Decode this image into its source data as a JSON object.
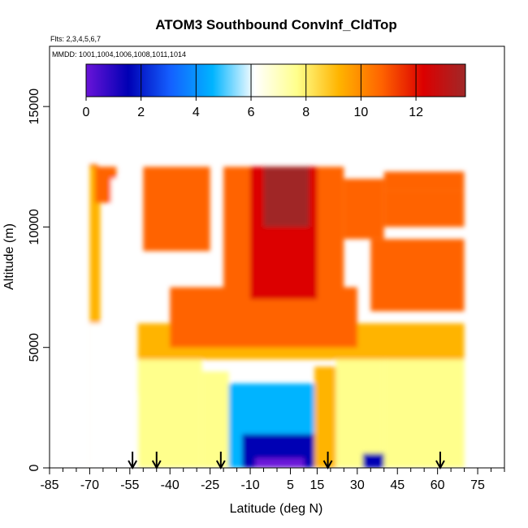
{
  "chart_data": {
    "type": "heatmap",
    "title": "ATOM3 Southbound ConvInf_CldTop",
    "annotations": [
      "Flts: 2,3,4,5,6,7",
      "MMDD: 1001,1004,1006,1008,1011,1014"
    ],
    "xlabel": "Latitude (deg N)",
    "ylabel": "Altitude (m)",
    "xlim": [
      -85,
      85
    ],
    "ylim": [
      0,
      17500
    ],
    "x_ticks": [
      -85,
      -70,
      -55,
      -40,
      -25,
      -10,
      5,
      15,
      30,
      45,
      60,
      75
    ],
    "x_tick_labels": [
      "-85",
      "-70",
      "-55",
      "-40",
      "-25",
      "-10",
      "5",
      "15",
      "30",
      "45",
      "60",
      "75"
    ],
    "y_ticks": [
      0,
      5000,
      10000,
      15000
    ],
    "y_tick_labels": [
      "0",
      "5000",
      "10000",
      "15000"
    ],
    "colorbar": {
      "min": 0,
      "max": 13.8,
      "ticks": [
        0,
        2,
        4,
        6,
        8,
        10,
        12
      ],
      "tick_labels": [
        "0",
        "2",
        "4",
        "6",
        "8",
        "10",
        "12"
      ],
      "colors": [
        "#6a14d8",
        "#0000b4",
        "#1460ff",
        "#00b4ff",
        "#ffffff",
        "#ffff8c",
        "#ffb400",
        "#ff6400",
        "#dc0000",
        "#a02828"
      ]
    },
    "flight_markers_latitude": [
      -54,
      -45,
      -21,
      19,
      61
    ],
    "regions": [
      {
        "lat": [
          -70,
          -67
        ],
        "alt": [
          12400,
          12600
        ],
        "value": 10.5
      },
      {
        "lat": [
          -70,
          -66
        ],
        "alt": [
          0,
          12500
        ],
        "value": 8.5
      },
      {
        "lat": [
          -68,
          -60
        ],
        "alt": [
          11000,
          12500
        ],
        "value": 10.5
      },
      {
        "lat": [
          -62,
          -58
        ],
        "alt": [
          10500,
          12000
        ],
        "value": 5.5
      },
      {
        "lat": [
          -70,
          -60
        ],
        "alt": [
          0,
          6000
        ],
        "value": 6.8
      },
      {
        "lat": [
          -60,
          -52
        ],
        "alt": [
          0,
          3000
        ],
        "value": 6.5
      },
      {
        "lat": [
          -52,
          -28
        ],
        "alt": [
          0,
          5000
        ],
        "value": 7.3
      },
      {
        "lat": [
          -28,
          -18
        ],
        "alt": [
          0,
          4000
        ],
        "value": 7.0
      },
      {
        "lat": [
          -18,
          14
        ],
        "alt": [
          0,
          3500
        ],
        "value": 4.0
      },
      {
        "lat": [
          -13,
          14
        ],
        "alt": [
          0,
          1400
        ],
        "value": 2.2
      },
      {
        "lat": [
          -8,
          10
        ],
        "alt": [
          0,
          400
        ],
        "value": 0.4
      },
      {
        "lat": [
          14,
          22
        ],
        "alt": [
          0,
          4200
        ],
        "value": 8.6
      },
      {
        "lat": [
          22,
          40
        ],
        "alt": [
          0,
          4800
        ],
        "value": 7.3
      },
      {
        "lat": [
          32,
          42
        ],
        "alt": [
          0,
          600
        ],
        "value": 1.5
      },
      {
        "lat": [
          40,
          70
        ],
        "alt": [
          0,
          4500
        ],
        "value": 7.6
      },
      {
        "lat": [
          -52,
          70
        ],
        "alt": [
          4500,
          6000
        ],
        "value": 9.2
      },
      {
        "lat": [
          -40,
          30
        ],
        "alt": [
          5000,
          7500
        ],
        "value": 10.0
      },
      {
        "lat": [
          -20,
          25
        ],
        "alt": [
          5500,
          12500
        ],
        "value": 11.5
      },
      {
        "lat": [
          -10,
          15
        ],
        "alt": [
          7000,
          12500
        ],
        "value": 12.7
      },
      {
        "lat": [
          -5,
          12
        ],
        "alt": [
          10000,
          12500
        ],
        "value": 13.2
      },
      {
        "lat": [
          25,
          40
        ],
        "alt": [
          9500,
          12000
        ],
        "value": 11.0
      },
      {
        "lat": [
          40,
          70
        ],
        "alt": [
          10000,
          11500
        ],
        "value": 10.0
      },
      {
        "lat": [
          40,
          70
        ],
        "alt": [
          11500,
          12300
        ],
        "value": 11.0
      },
      {
        "lat": [
          -50,
          -25
        ],
        "alt": [
          9000,
          12500
        ],
        "value": 10.8
      },
      {
        "lat": [
          35,
          70
        ],
        "alt": [
          6500,
          9500
        ],
        "value": 10.2
      }
    ]
  }
}
